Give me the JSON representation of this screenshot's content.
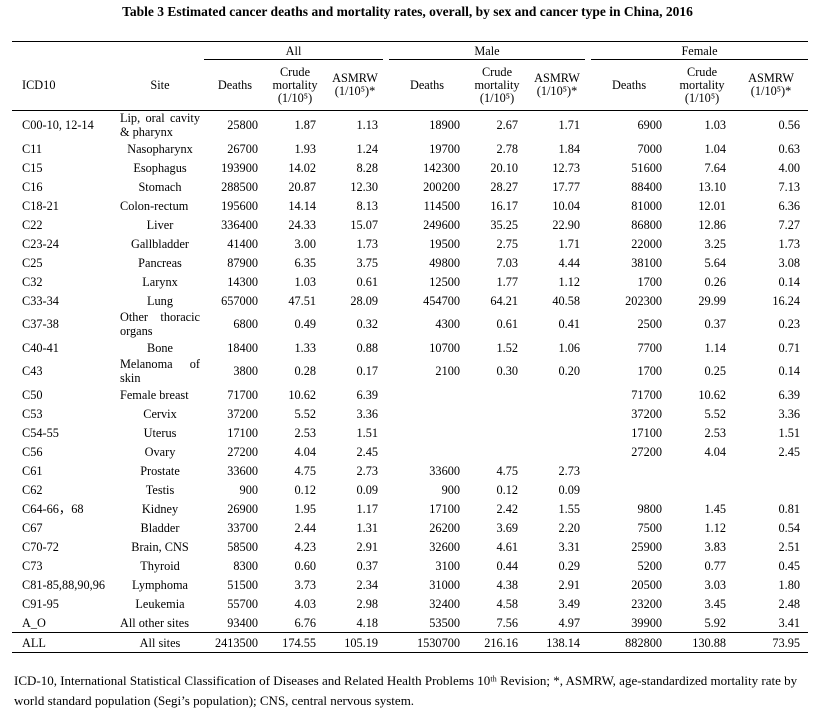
{
  "title": "Table 3 Estimated cancer deaths and mortality rates, overall, by sex and cancer type in China, 2016",
  "table": {
    "groups": [
      "All",
      "Male",
      "Female"
    ],
    "columns": [
      "ICD10",
      "Site",
      "Deaths",
      "Crude mortality (1/10⁵)",
      "ASMRW (1/10⁵)*",
      "Deaths",
      "Crude mortality (1/10⁵)",
      "ASMRW (1/10⁵)*",
      "Deaths",
      "Crude mortality (1/10⁵)",
      "ASMRW (1/10⁵)*"
    ],
    "rows": [
      [
        "C00-10, 12-14",
        "Lip, oral cavity & pharynx",
        "25800",
        "1.87",
        "1.13",
        "18900",
        "2.67",
        "1.71",
        "6900",
        "1.03",
        "0.56"
      ],
      [
        "C11",
        "Nasopharynx",
        "26700",
        "1.93",
        "1.24",
        "19700",
        "2.78",
        "1.84",
        "7000",
        "1.04",
        "0.63"
      ],
      [
        "C15",
        "Esophagus",
        "193900",
        "14.02",
        "8.28",
        "142300",
        "20.10",
        "12.73",
        "51600",
        "7.64",
        "4.00"
      ],
      [
        "C16",
        "Stomach",
        "288500",
        "20.87",
        "12.30",
        "200200",
        "28.27",
        "17.77",
        "88400",
        "13.10",
        "7.13"
      ],
      [
        "C18-21",
        "Colon-rectum",
        "195600",
        "14.14",
        "8.13",
        "114500",
        "16.17",
        "10.04",
        "81000",
        "12.01",
        "6.36"
      ],
      [
        "C22",
        "Liver",
        "336400",
        "24.33",
        "15.07",
        "249600",
        "35.25",
        "22.90",
        "86800",
        "12.86",
        "7.27"
      ],
      [
        "C23-24",
        "Gallbladder",
        "41400",
        "3.00",
        "1.73",
        "19500",
        "2.75",
        "1.71",
        "22000",
        "3.25",
        "1.73"
      ],
      [
        "C25",
        "Pancreas",
        "87900",
        "6.35",
        "3.75",
        "49800",
        "7.03",
        "4.44",
        "38100",
        "5.64",
        "3.08"
      ],
      [
        "C32",
        "Larynx",
        "14300",
        "1.03",
        "0.61",
        "12500",
        "1.77",
        "1.12",
        "1700",
        "0.26",
        "0.14"
      ],
      [
        "C33-34",
        "Lung",
        "657000",
        "47.51",
        "28.09",
        "454700",
        "64.21",
        "40.58",
        "202300",
        "29.99",
        "16.24"
      ],
      [
        "C37-38",
        "Other thoracic organs",
        "6800",
        "0.49",
        "0.32",
        "4300",
        "0.61",
        "0.41",
        "2500",
        "0.37",
        "0.23"
      ],
      [
        "C40-41",
        "Bone",
        "18400",
        "1.33",
        "0.88",
        "10700",
        "1.52",
        "1.06",
        "7700",
        "1.14",
        "0.71"
      ],
      [
        "C43",
        "Melanoma of skin",
        "3800",
        "0.28",
        "0.17",
        "2100",
        "0.30",
        "0.20",
        "1700",
        "0.25",
        "0.14"
      ],
      [
        "C50",
        "Female breast",
        "71700",
        "10.62",
        "6.39",
        null,
        null,
        null,
        "71700",
        "10.62",
        "6.39"
      ],
      [
        "C53",
        "Cervix",
        "37200",
        "5.52",
        "3.36",
        null,
        null,
        null,
        "37200",
        "5.52",
        "3.36"
      ],
      [
        "C54-55",
        "Uterus",
        "17100",
        "2.53",
        "1.51",
        null,
        null,
        null,
        "17100",
        "2.53",
        "1.51"
      ],
      [
        "C56",
        "Ovary",
        "27200",
        "4.04",
        "2.45",
        null,
        null,
        null,
        "27200",
        "4.04",
        "2.45"
      ],
      [
        "C61",
        "Prostate",
        "33600",
        "4.75",
        "2.73",
        "33600",
        "4.75",
        "2.73",
        null,
        null,
        null
      ],
      [
        "C62",
        "Testis",
        "900",
        "0.12",
        "0.09",
        "900",
        "0.12",
        "0.09",
        null,
        null,
        null
      ],
      [
        "C64-66，68",
        "Kidney",
        "26900",
        "1.95",
        "1.17",
        "17100",
        "2.42",
        "1.55",
        "9800",
        "1.45",
        "0.81"
      ],
      [
        "C67",
        "Bladder",
        "33700",
        "2.44",
        "1.31",
        "26200",
        "3.69",
        "2.20",
        "7500",
        "1.12",
        "0.54"
      ],
      [
        "C70-72",
        "Brain, CNS",
        "58500",
        "4.23",
        "2.91",
        "32600",
        "4.61",
        "3.31",
        "25900",
        "3.83",
        "2.51"
      ],
      [
        "C73",
        "Thyroid",
        "8300",
        "0.60",
        "0.37",
        "3100",
        "0.44",
        "0.29",
        "5200",
        "0.77",
        "0.45"
      ],
      [
        "C81-85,88,90,96",
        "Lymphoma",
        "51500",
        "3.73",
        "2.34",
        "31000",
        "4.38",
        "2.91",
        "20500",
        "3.03",
        "1.80"
      ],
      [
        "C91-95",
        "Leukemia",
        "55700",
        "4.03",
        "2.98",
        "32400",
        "4.58",
        "3.49",
        "23200",
        "3.45",
        "2.48"
      ],
      [
        "A_O",
        "All other sites",
        "93400",
        "6.76",
        "4.18",
        "53500",
        "7.56",
        "4.97",
        "39900",
        "5.92",
        "3.41"
      ],
      [
        "ALL",
        "All sites",
        "2413500",
        "174.55",
        "105.19",
        "1530700",
        "216.16",
        "138.14",
        "882800",
        "130.88",
        "73.95"
      ]
    ]
  },
  "footnote": "ICD-10, International Statistical Classification of Diseases and Related Health Problems 10ᵗʰ Revision; *, ASMRW, age-standardized mortality rate by world standard population (Segi’s population); CNS, central nervous system."
}
